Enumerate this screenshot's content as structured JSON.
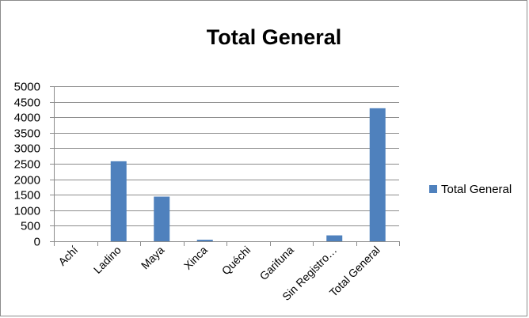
{
  "chart_data": {
    "type": "bar",
    "title": "Total General",
    "xlabel": "",
    "ylabel": "",
    "categories": [
      "Achí",
      "Ladino",
      "Maya",
      "Xinca",
      "Quéchi",
      "Garifuna",
      "Sin Registro…",
      "Total General"
    ],
    "series": [
      {
        "name": "Total General",
        "values": [
          0,
          2580,
          1440,
          50,
          0,
          0,
          190,
          4290
        ]
      }
    ],
    "ylim": [
      0,
      5000
    ],
    "yticks": [
      0,
      500,
      1000,
      1500,
      2000,
      2500,
      3000,
      3500,
      4000,
      4500,
      5000
    ],
    "grid": true,
    "legend_position": "right",
    "bar_color": "#4f81bd"
  }
}
